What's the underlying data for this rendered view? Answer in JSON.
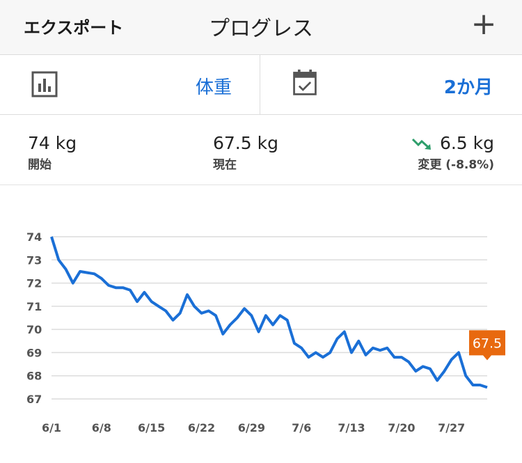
{
  "navbar": {
    "export_label": "エクスポート",
    "title": "プログレス",
    "add_label": "+"
  },
  "selectors": {
    "metric": {
      "icon": "bar-chart-icon",
      "value": "体重"
    },
    "period": {
      "icon": "calendar-check-icon",
      "value": "2か月"
    }
  },
  "stats": {
    "start": {
      "value": "74 kg",
      "label": "開始"
    },
    "current": {
      "value": "67.5 kg",
      "label": "現在"
    },
    "change": {
      "value": "6.5 kg",
      "label": "変更 (-8.8%)",
      "icon": "trend-down-icon"
    }
  },
  "colors": {
    "accent": "#1a6fd6",
    "line": "#1a6fd6",
    "trend_down": "#2e9e6b",
    "callout": "#e8690f",
    "grid": "#dcdcdc"
  },
  "chart_data": {
    "type": "line",
    "x_tick_labels": [
      "6/1",
      "6/8",
      "6/15",
      "6/22",
      "6/29",
      "7/6",
      "7/13",
      "7/20",
      "7/27"
    ],
    "y_tick_labels": [
      "74",
      "73",
      "72",
      "71",
      "70",
      "69",
      "68",
      "67"
    ],
    "ylim": [
      67,
      74
    ],
    "xlim": [
      0,
      61
    ],
    "grid": true,
    "last_value_label": "67.5",
    "series": [
      {
        "x": [
          0,
          1,
          2,
          3,
          4,
          5,
          6,
          7,
          8,
          9,
          10,
          11,
          12,
          13,
          14,
          15,
          16,
          17,
          18,
          19,
          20,
          21,
          22,
          23,
          24,
          25,
          26,
          27,
          28,
          29,
          30,
          31,
          32,
          33,
          34,
          35,
          36,
          37,
          38,
          39,
          40,
          41,
          42,
          43,
          44,
          45,
          46,
          47,
          48,
          49,
          50,
          51,
          52,
          53,
          54,
          55,
          56,
          57,
          58,
          59,
          60,
          61
        ],
        "y": [
          74.0,
          73.0,
          72.6,
          72.0,
          72.5,
          72.45,
          72.4,
          72.2,
          71.9,
          71.8,
          71.8,
          71.7,
          71.2,
          71.6,
          71.2,
          71.0,
          70.8,
          70.4,
          70.7,
          71.5,
          71.0,
          70.7,
          70.8,
          70.6,
          69.8,
          70.2,
          70.5,
          70.9,
          70.6,
          69.9,
          70.6,
          70.2,
          70.6,
          70.4,
          69.4,
          69.2,
          68.8,
          69.0,
          68.8,
          69.0,
          69.6,
          69.9,
          69.0,
          69.5,
          68.9,
          69.2,
          69.1,
          69.2,
          68.8,
          68.8,
          68.6,
          68.2,
          68.4,
          68.3,
          67.8,
          68.2,
          68.7,
          69.0,
          68.0,
          67.6,
          67.6,
          67.5
        ]
      }
    ]
  }
}
